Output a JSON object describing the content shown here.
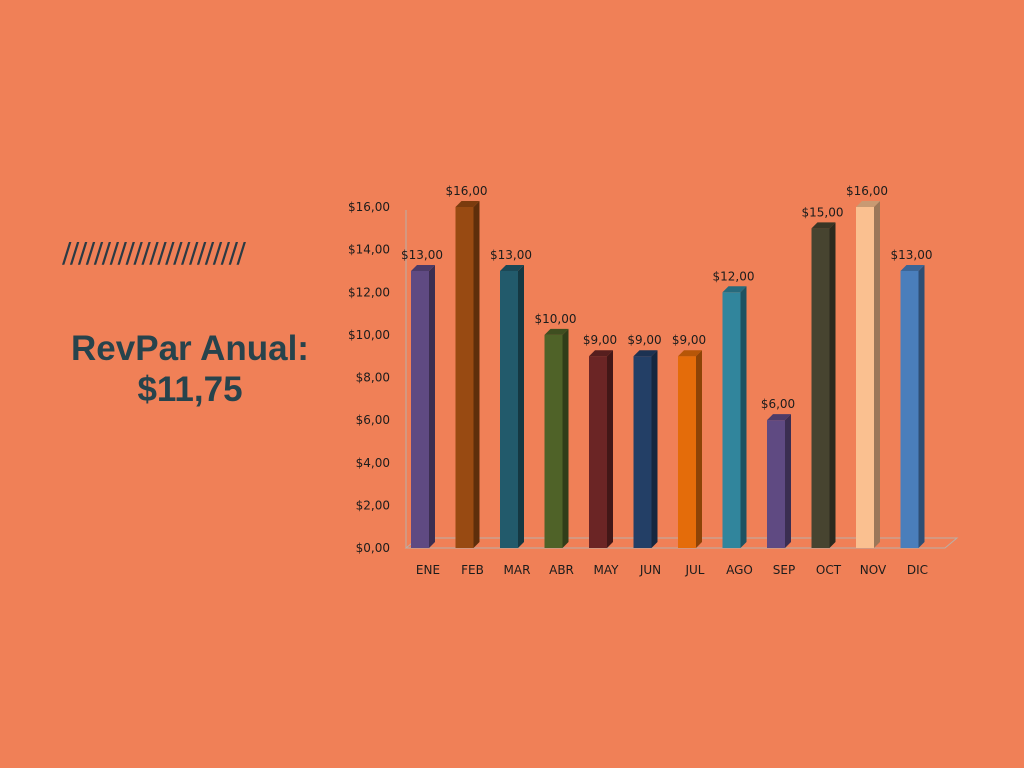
{
  "decor": {
    "slashes": "///////////////////////"
  },
  "headline": {
    "line1": "RevPar Anual:",
    "line2": "$11,75"
  },
  "chart_data": {
    "type": "bar",
    "categories": [
      "ENE",
      "FEB",
      "MAR",
      "ABR",
      "MAY",
      "JUN",
      "JUL",
      "AGO",
      "SEP",
      "OCT",
      "NOV",
      "DIC"
    ],
    "values": [
      13,
      16,
      13,
      10,
      9,
      9,
      9,
      12,
      6,
      15,
      16,
      13
    ],
    "value_labels": [
      "$13,00",
      "$16,00",
      "$13,00",
      "$10,00",
      "$9,00",
      "$9,00",
      "$9,00",
      "$12,00",
      "$6,00",
      "$15,00",
      "$16,00",
      "$13,00"
    ],
    "colors": [
      "#5f4a82",
      "#984a12",
      "#225a6b",
      "#4f6228",
      "#6b2525",
      "#233f66",
      "#e46c0a",
      "#31859c",
      "#5f4a82",
      "#474430",
      "#fac090",
      "#4a7ebb"
    ],
    "yticks": [
      0,
      2,
      4,
      6,
      8,
      10,
      12,
      14,
      16
    ],
    "ytick_labels": [
      "$0,00",
      "$2,00",
      "$4,00",
      "$6,00",
      "$8,00",
      "$10,00",
      "$12,00",
      "$14,00",
      "$16,00"
    ],
    "ylim": [
      0,
      16
    ],
    "title": "",
    "xlabel": "",
    "ylabel": "",
    "grid": false,
    "legend": "none",
    "style": "3d-column"
  }
}
